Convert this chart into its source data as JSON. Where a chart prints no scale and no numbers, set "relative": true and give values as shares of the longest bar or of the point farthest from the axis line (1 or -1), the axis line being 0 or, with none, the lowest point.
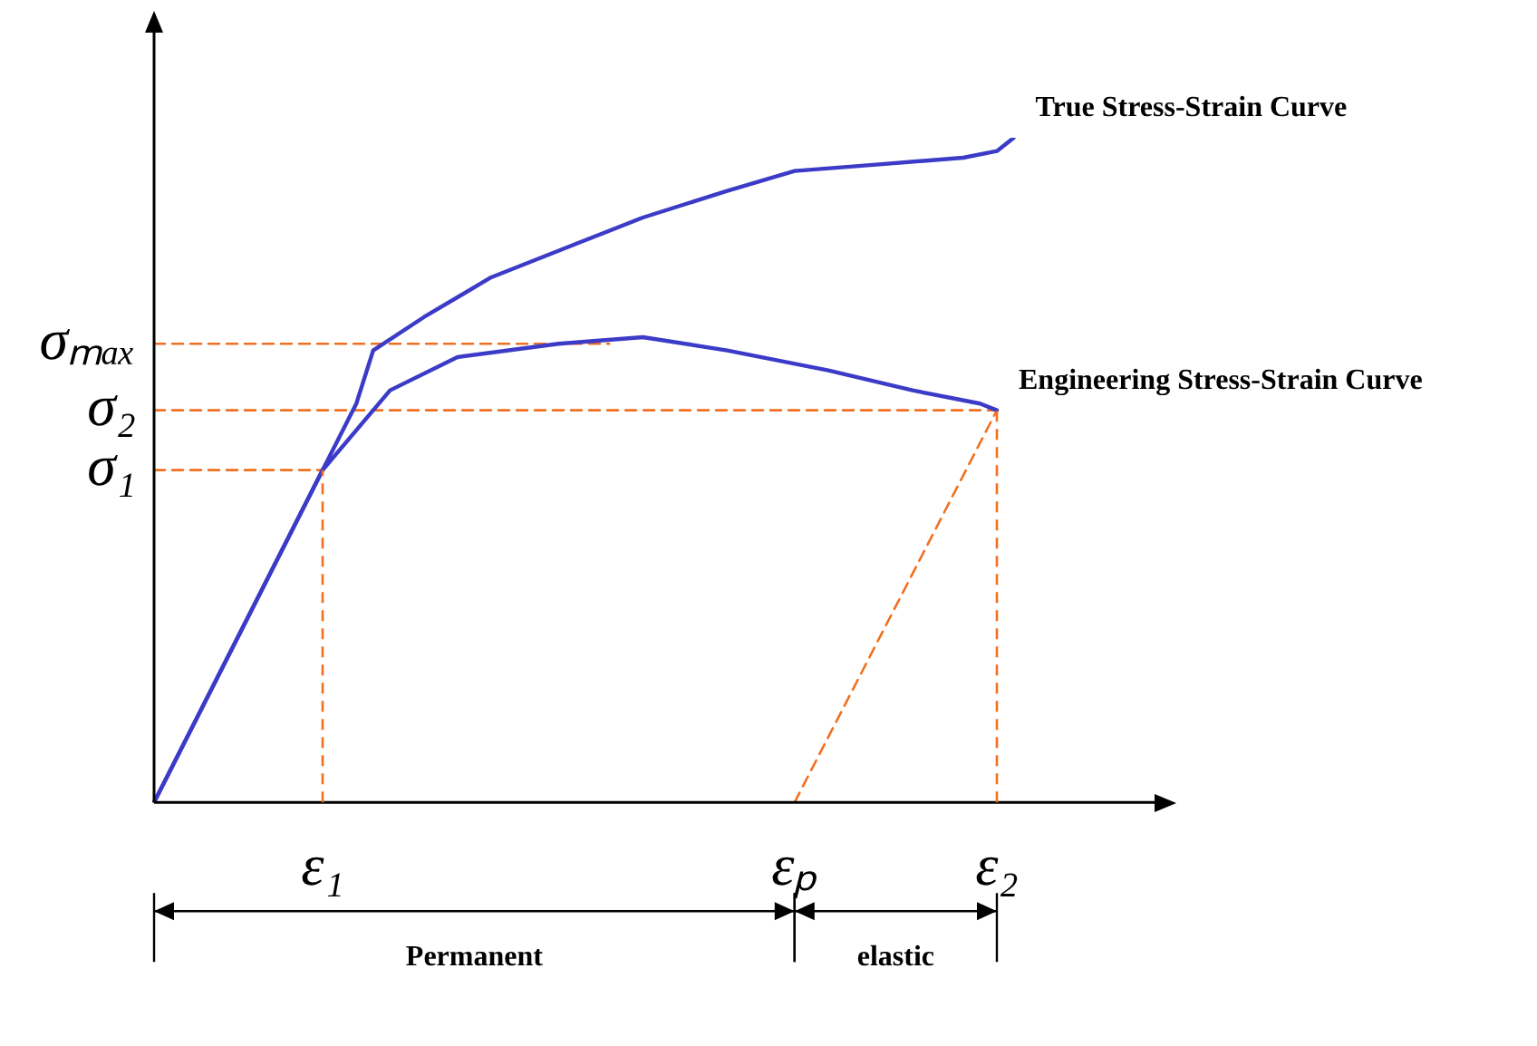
{
  "chart_data": {
    "type": "line",
    "relative": true,
    "marker": "none",
    "categories": [
      null,
      null,
      null,
      null,
      null,
      null,
      null,
      null,
      null,
      null,
      "ε₁",
      null,
      null,
      null,
      null,
      null,
      null,
      null,
      null,
      null,
      null,
      null,
      null,
      null,
      null,
      null,
      null,
      null,
      null,
      null,
      null,
      null,
      null,
      null,
      null,
      null,
      null,
      null,
      "εₚ",
      null,
      null,
      null,
      null,
      null,
      null,
      null,
      null,
      null,
      null,
      null,
      "ε₂",
      null,
      null,
      null,
      null,
      null,
      null,
      null,
      null,
      null,
      null
    ],
    "series": [
      {
        "name": "True Stress-Strain Curve",
        "color": "#3b3bc8",
        "values": [
          0,
          null,
          null,
          null,
          null,
          null,
          null,
          null,
          null,
          null,
          0.5,
          null,
          0.6,
          0.68,
          null,
          null,
          0.73,
          null,
          null,
          null,
          0.79,
          null,
          null,
          null,
          null,
          0.84,
          null,
          null,
          null,
          0.88,
          null,
          null,
          null,
          null,
          0.92,
          null,
          null,
          null,
          0.95,
          null,
          null,
          null,
          null,
          0.96,
          null,
          null,
          null,
          null,
          0.97,
          null,
          0.98,
          1,
          null,
          null,
          null,
          null,
          null,
          null,
          null,
          null,
          null
        ]
      },
      {
        "name": "Engineering Stress-Strain Curve",
        "color": "#3b3bc8",
        "values": [
          0,
          null,
          null,
          null,
          null,
          null,
          null,
          null,
          null,
          null,
          0.5,
          null,
          null,
          null,
          0.62,
          null,
          null,
          null,
          0.67,
          null,
          null,
          null,
          null,
          null,
          0.69,
          null,
          null,
          null,
          null,
          0.7,
          null,
          null,
          null,
          null,
          0.68,
          null,
          null,
          null,
          null,
          null,
          0.65,
          null,
          null,
          null,
          null,
          0.62,
          null,
          null,
          null,
          0.6,
          0.59,
          null,
          null,
          null,
          null,
          null,
          null,
          null,
          null,
          null,
          null
        ]
      },
      {
        "color": "#f07020",
        "line_style": "dashed",
        "values": [
          null,
          null,
          null,
          null,
          null,
          null,
          null,
          null,
          null,
          null,
          null,
          null,
          null,
          null,
          null,
          null,
          null,
          null,
          null,
          null,
          null,
          null,
          null,
          null,
          null,
          null,
          null,
          null,
          null,
          null,
          null,
          null,
          null,
          null,
          null,
          null,
          null,
          null,
          0,
          null,
          null,
          null,
          null,
          null,
          null,
          null,
          null,
          null,
          null,
          null,
          0.59,
          null,
          null,
          null,
          null,
          null,
          null,
          null,
          null,
          null,
          null
        ]
      },
      {
        "name": "σₘₐₓ",
        "color": "#f07020",
        "line_style": "dashed",
        "values": [
          0.69,
          null,
          null,
          null,
          null,
          null,
          null,
          null,
          null,
          null,
          null,
          null,
          null,
          null,
          null,
          null,
          null,
          null,
          null,
          null,
          null,
          null,
          null,
          null,
          null,
          null,
          null,
          0.69,
          null,
          null,
          null,
          null,
          null,
          null,
          null,
          null,
          null,
          null,
          null,
          null,
          null,
          null,
          null,
          null,
          null,
          null,
          null,
          null,
          null,
          null,
          null,
          null,
          null,
          null,
          null,
          null,
          null,
          null,
          null,
          null,
          null
        ]
      },
      {
        "name": "σ₂",
        "color": "#f07020",
        "line_style": "dashed",
        "values": [
          0.59,
          null,
          null,
          null,
          null,
          null,
          null,
          null,
          null,
          null,
          null,
          null,
          null,
          null,
          null,
          null,
          null,
          null,
          null,
          null,
          null,
          null,
          null,
          null,
          null,
          null,
          null,
          null,
          null,
          null,
          null,
          null,
          null,
          null,
          null,
          null,
          null,
          null,
          null,
          null,
          null,
          null,
          null,
          null,
          null,
          null,
          null,
          null,
          null,
          null,
          0.59,
          null,
          null,
          null,
          null,
          null,
          null,
          null,
          null,
          null,
          null
        ]
      },
      {
        "name": "σ₁",
        "color": "#f07020",
        "line_style": "dashed",
        "values": [
          0.5,
          null,
          null,
          null,
          null,
          null,
          null,
          null,
          null,
          null,
          0.5,
          null,
          null,
          null,
          null,
          null,
          null,
          null,
          null,
          null,
          null,
          null,
          null,
          null,
          null,
          null,
          null,
          null,
          null,
          null,
          null,
          null,
          null,
          null,
          null,
          null,
          null,
          null,
          null,
          null,
          null,
          null,
          null,
          null,
          null,
          null,
          null,
          null,
          null,
          null,
          null,
          null,
          null,
          null,
          null,
          null,
          null,
          null,
          null,
          null,
          null
        ]
      }
    ],
    "ref_lines": [
      {
        "axis": "x",
        "value": "ε₁",
        "color": "#f07020",
        "line_style": "dashed"
      },
      {
        "axis": "x",
        "value": "ε₂",
        "color": "#f07020",
        "line_style": "dashed"
      }
    ],
    "annotations": [
      "Permanent",
      "elastic"
    ]
  }
}
